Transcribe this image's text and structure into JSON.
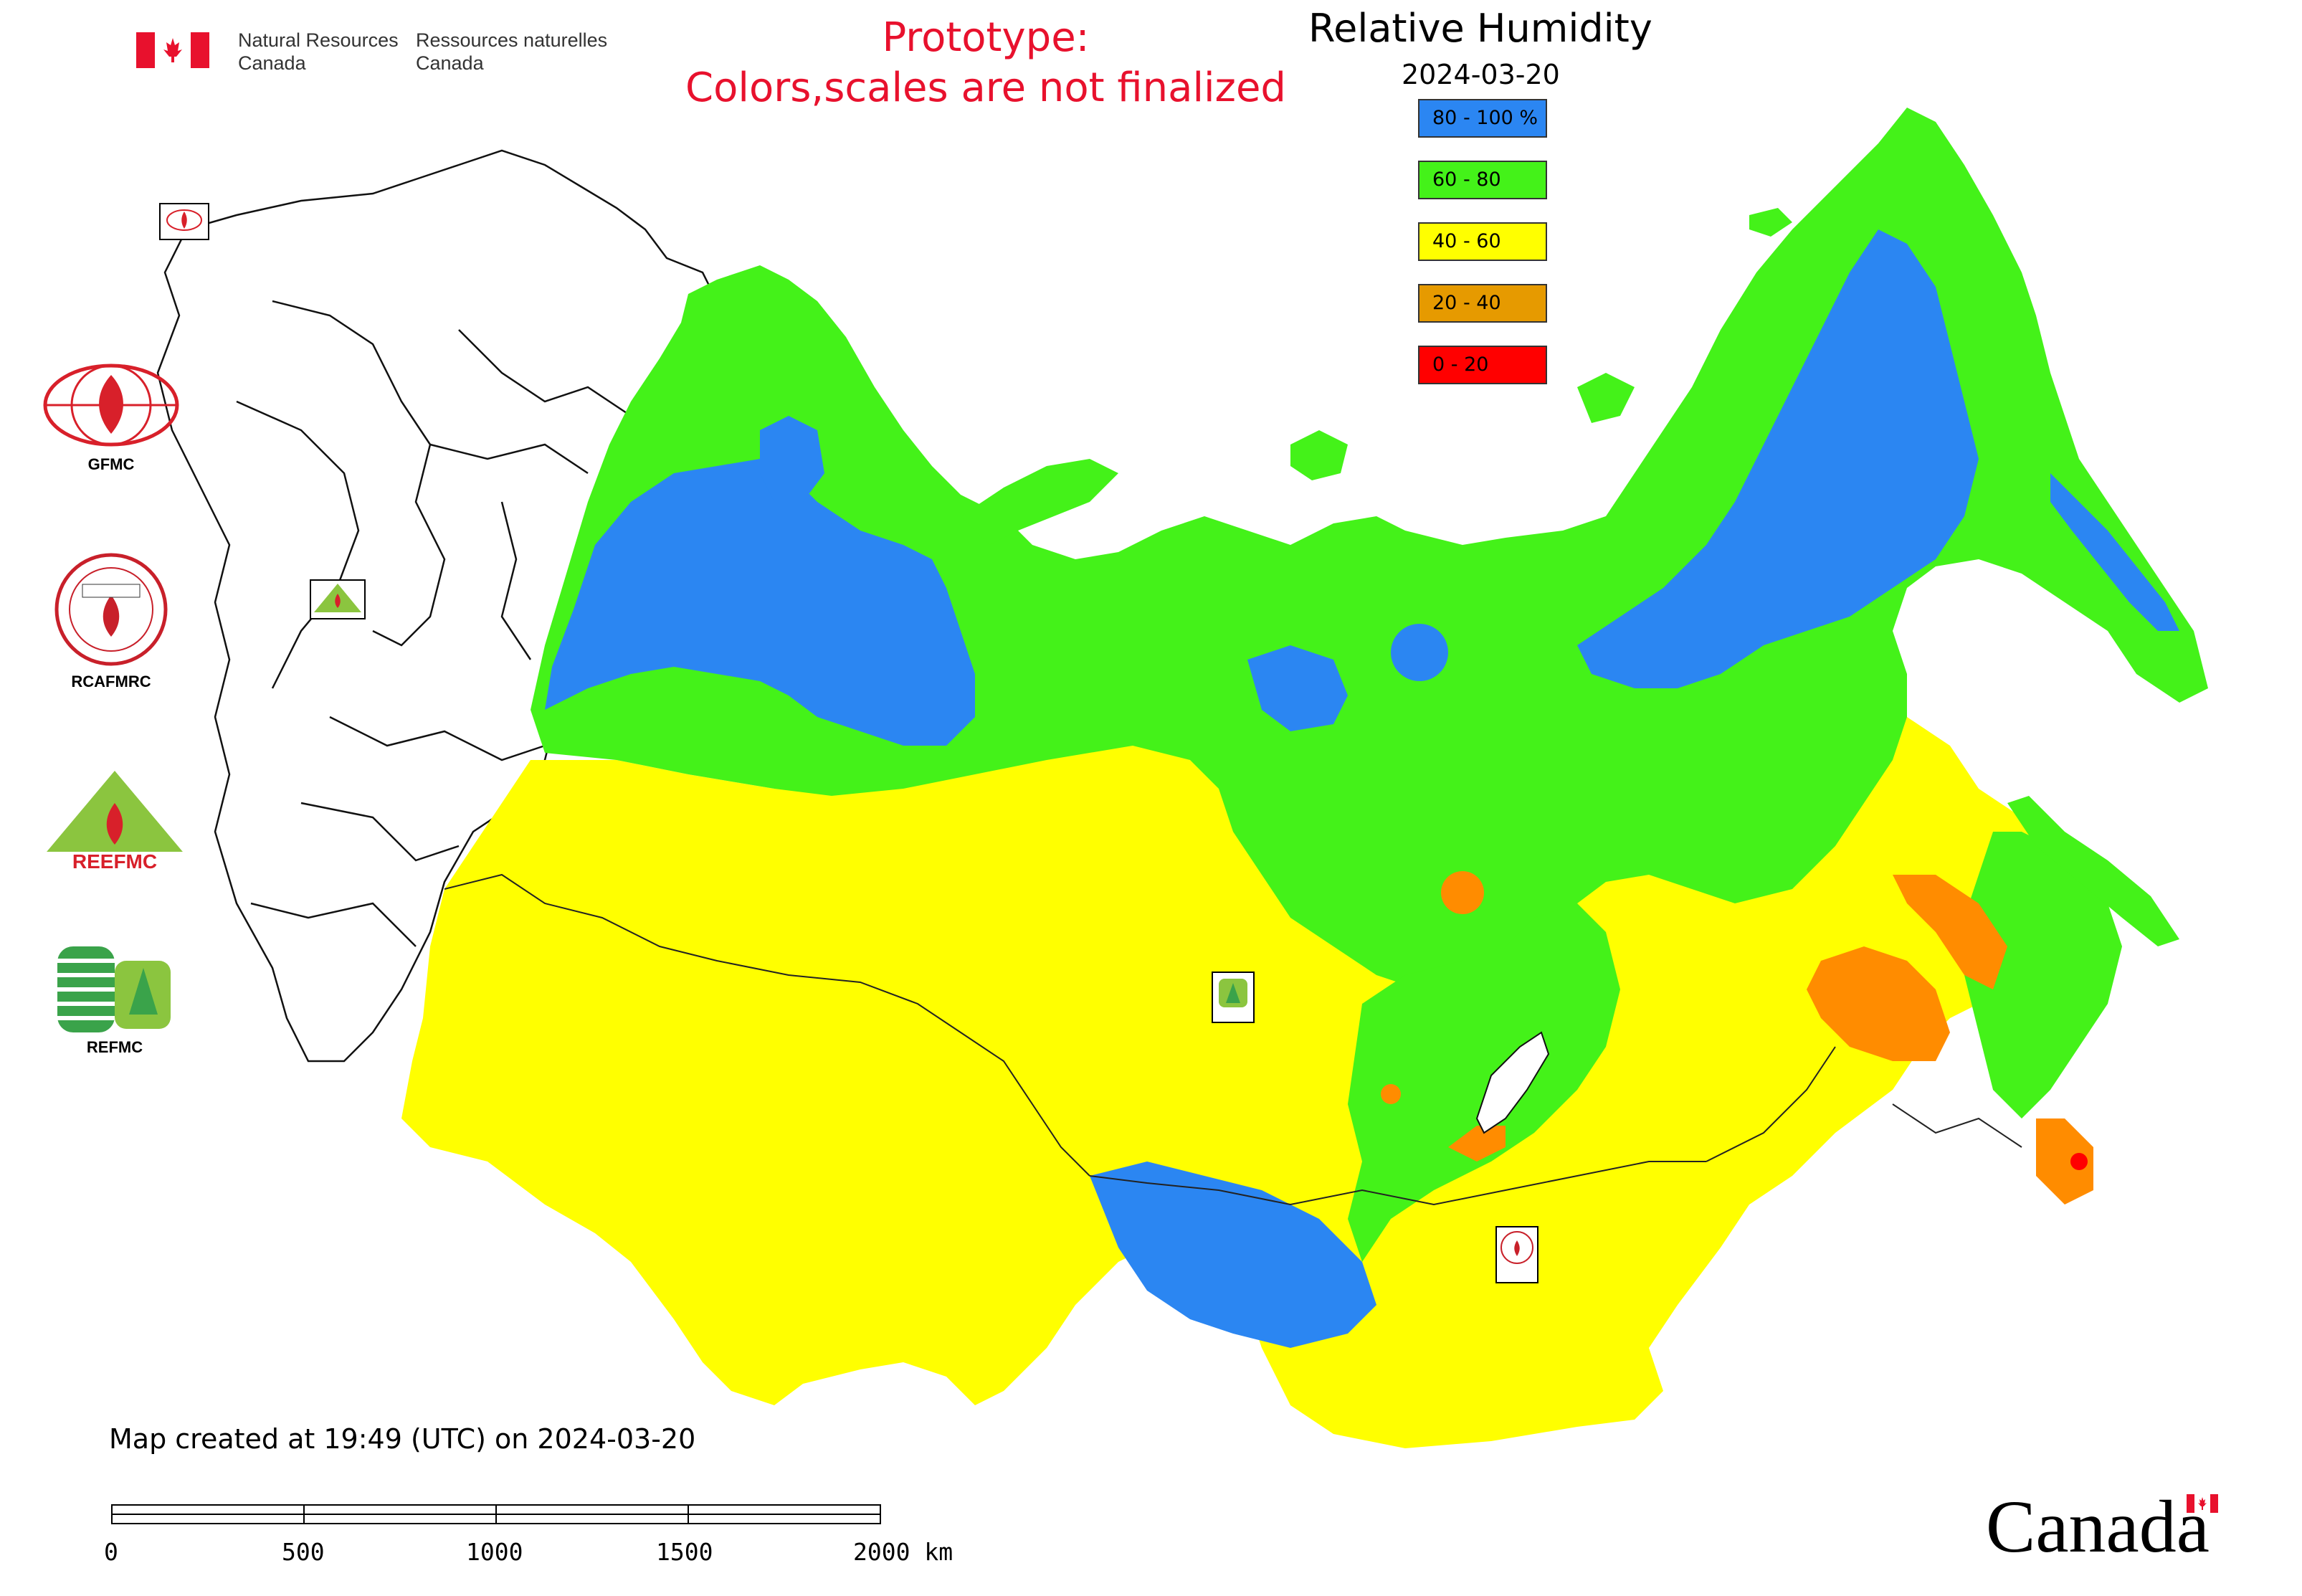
{
  "header": {
    "agency_en_line1": "Natural Resources",
    "agency_en_line2": "Canada",
    "agency_fr_line1": "Ressources naturelles",
    "agency_fr_line2": "Canada",
    "prototype_line1": "Prototype:",
    "prototype_line2": "Colors,scales are not finalized"
  },
  "map": {
    "title": "Relative Humidity",
    "date": "2024-03-20",
    "legend": [
      {
        "label": "80 - 100 %",
        "color": "#2b86f2"
      },
      {
        "label": "60 - 80",
        "color": "#44f219"
      },
      {
        "label": "40 - 60",
        "color": "#ffff00"
      },
      {
        "label": "20 - 40",
        "color": "#e69a00"
      },
      {
        "label": "0 - 20",
        "color": "#ff0000"
      }
    ],
    "colors": {
      "blue": "#2b86f2",
      "green": "#44f219",
      "yellow": "#ffff00",
      "orange": "#ff8c00",
      "red": "#ff0000",
      "border": "#000000"
    }
  },
  "logos": {
    "gfmc": "GFMC",
    "rcafmrc": "RCAFMRC",
    "rcafmrc_badge": "RCAFMRC",
    "reefmc_badge": "REEFMC",
    "refmc": "REFMC"
  },
  "footer": {
    "created": "Map created at 19:49 (UTC) on 2024-03-20",
    "scale_ticks": [
      "0",
      "500",
      "1000",
      "1500",
      "2000 km"
    ],
    "wordmark": "Canada"
  }
}
